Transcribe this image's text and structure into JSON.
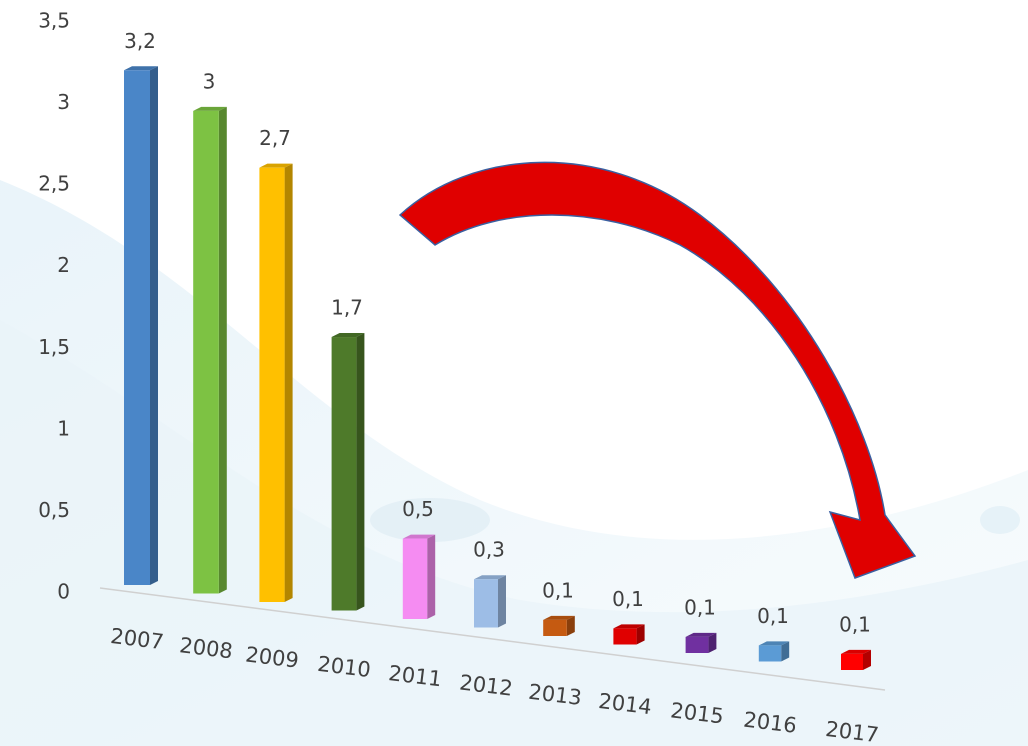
{
  "chart_data": {
    "type": "bar",
    "categories": [
      "2007",
      "2008",
      "2009",
      "2010",
      "2011",
      "2012",
      "2013",
      "2014",
      "2015",
      "2016",
      "2017"
    ],
    "values": [
      3.2,
      3,
      2.7,
      1.7,
      0.5,
      0.3,
      0.1,
      0.1,
      0.1,
      0.1,
      0.1
    ],
    "value_labels": [
      "3,2",
      "3",
      "2,7",
      "1,7",
      "0,5",
      "0,3",
      "0,1",
      "0,1",
      "0,1",
      "0,1",
      "0,1"
    ],
    "colors": [
      "#4a86c8",
      "#7dc243",
      "#ffc000",
      "#4e7a2a",
      "#f58cf2",
      "#9dbde6",
      "#c55a11",
      "#e00000",
      "#7030a0",
      "#5b9bd5",
      "#ff0000"
    ],
    "ylim": [
      0,
      3.5
    ],
    "yticks": [
      0,
      {
        "value": 0.5,
        "label": "0,5"
      },
      1,
      {
        "value": 1.5,
        "label": "1,5"
      },
      2,
      {
        "value": 2.5,
        "label": "2,5"
      },
      3,
      {
        "value": 3.5,
        "label": "3,5"
      }
    ]
  }
}
